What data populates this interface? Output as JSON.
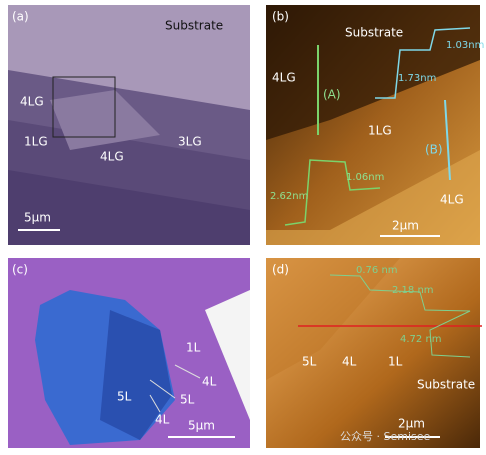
{
  "panels": [
    {
      "label": "(a)",
      "texts": [
        "Substrate",
        "4LG",
        "1LG",
        "4LG",
        "3LG"
      ],
      "scale_bar": "5μm"
    },
    {
      "label": "(b)",
      "texts": [
        "Substrate",
        "4LG",
        "(A)",
        "1LG",
        "(B)",
        "4LG",
        "1.73nm",
        "1.03nm",
        "1.06nm",
        "2.62nm"
      ],
      "scale_bar": "2μm"
    },
    {
      "label": "(c)",
      "texts": [
        "1L",
        "4L",
        "5L",
        "5L",
        "4L"
      ],
      "scale_bar": "5μm"
    },
    {
      "label": "(d)",
      "texts": [
        "0.76 nm",
        "2.18 nm",
        "4.72 nm",
        "5L",
        "4L",
        "1L",
        "Substrate"
      ],
      "scale_bar": "2μm"
    }
  ],
  "watermark": "公众号 · Semisee"
}
